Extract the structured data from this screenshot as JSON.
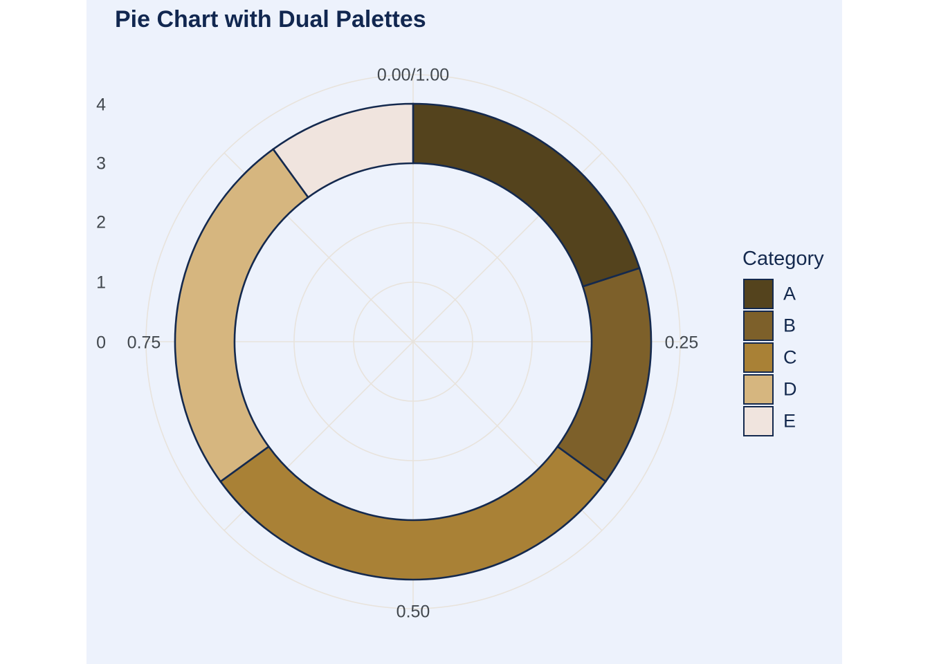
{
  "title": "Pie Chart with Dual Palettes",
  "legend": {
    "title": "Category",
    "items": [
      {
        "label": "A",
        "color": "#54431d"
      },
      {
        "label": "B",
        "color": "#7d602a"
      },
      {
        "label": "C",
        "color": "#a98136"
      },
      {
        "label": "D",
        "color": "#d6b67f"
      },
      {
        "label": "E",
        "color": "#f0e4de"
      }
    ]
  },
  "axes": {
    "radial_ticks": [
      "0",
      "1",
      "2",
      "3",
      "4"
    ],
    "angular_ticks": [
      "0.00/1.00",
      "0.25",
      "0.50",
      "0.75"
    ]
  },
  "colors": {
    "page_background": "#ffffff",
    "plot_background": "#edf2fc",
    "title_text": "#112750",
    "axis_text": "#42484e",
    "legend_text": "#14294e",
    "gridline": "#e8e3dc",
    "segment_border": "#14294e"
  },
  "chart_data": {
    "type": "pie",
    "title": "Pie Chart with Dual Palettes",
    "categories": [
      "A",
      "B",
      "C",
      "D",
      "E"
    ],
    "values": [
      0.2,
      0.15,
      0.3,
      0.25,
      0.1
    ],
    "colors": [
      "#54431d",
      "#7d602a",
      "#a98136",
      "#d6b67f",
      "#f0e4de"
    ],
    "start_angle": "top",
    "direction": "clockwise",
    "donut_inner_radius_units": 3,
    "donut_outer_radius_units": 4,
    "radial_axis_range": [
      0,
      4
    ],
    "angular_axis_labels": [
      "0.00/1.00",
      "0.25",
      "0.50",
      "0.75"
    ],
    "grid": true,
    "legend_title": "Category",
    "legend_position": "right"
  }
}
